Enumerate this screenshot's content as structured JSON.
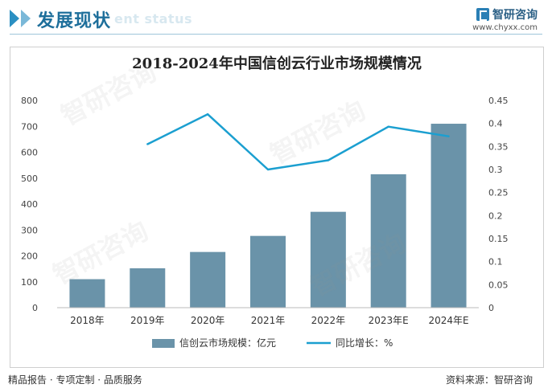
{
  "header": {
    "section_title": "发展现状",
    "section_subtitle": "ent status",
    "brand_name": "智研咨询",
    "brand_url": "www.chyxx.com"
  },
  "watermark": "智研咨询",
  "chart_data": {
    "type": "bar",
    "title": "2018-2024年中国信创云行业市场规模情况",
    "categories": [
      "2018年",
      "2019年",
      "2020年",
      "2021年",
      "2022年",
      "2023年E",
      "2024年E"
    ],
    "series": [
      {
        "name": "信创云市场规模：亿元",
        "type": "bar",
        "axis": "left",
        "values": [
          110,
          152,
          215,
          277,
          370,
          515,
          710
        ]
      },
      {
        "name": "同比增长：%",
        "type": "line",
        "axis": "right",
        "values": [
          null,
          0.355,
          0.42,
          0.3,
          0.32,
          0.393,
          0.372
        ]
      }
    ],
    "y_left": {
      "min": 0,
      "max": 800,
      "ticks": [
        "0",
        "100",
        "200",
        "300",
        "400",
        "500",
        "600",
        "700",
        "800"
      ]
    },
    "y_right": {
      "min": 0,
      "max": 0.45,
      "ticks": [
        "0",
        "0.05",
        "0.1",
        "0.15",
        "0.2",
        "0.25",
        "0.3",
        "0.35",
        "0.4",
        "0.45"
      ]
    },
    "grid": false,
    "legend": "bottom",
    "colors": {
      "bar": "#6a93a9",
      "line": "#1b9fd0"
    }
  },
  "footer": {
    "left": "精品报告 · 专项定制 · 品质服务",
    "right": "资料来源：智研咨询"
  }
}
